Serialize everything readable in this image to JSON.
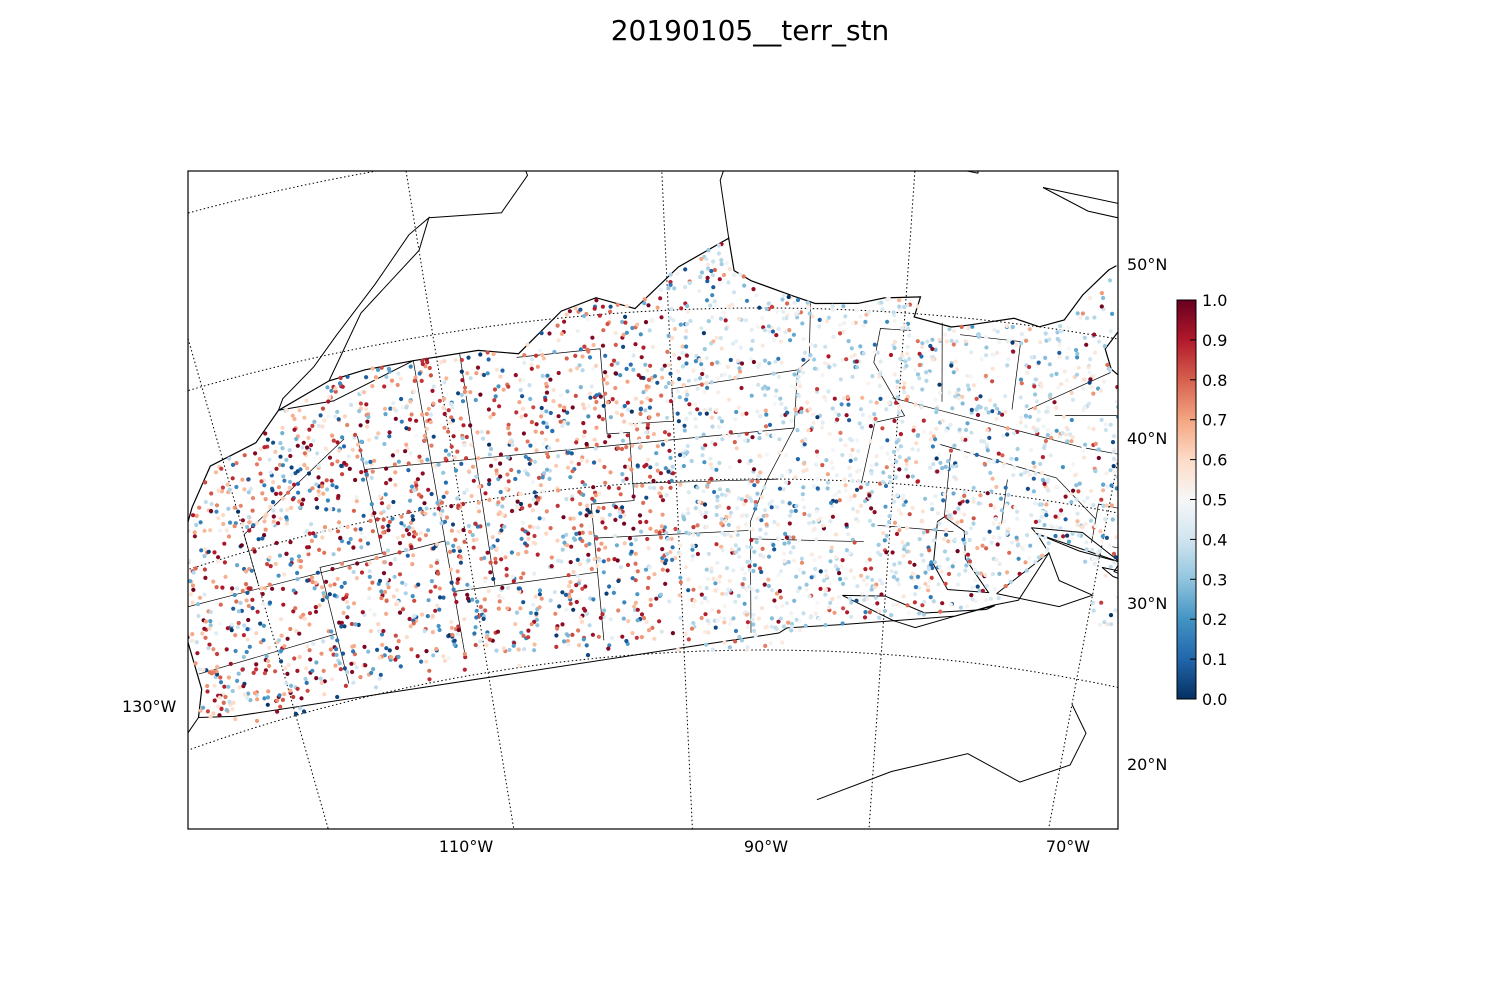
{
  "title": "20190105__terr_stn",
  "map": {
    "projection": "lambert-conformal",
    "region": "Contiguous United States, southern Canada, northern Mexico, Caribbean",
    "lon_labels": [
      {
        "text": "130°W",
        "lon": -130
      },
      {
        "text": "110°W",
        "lon": -110
      },
      {
        "text": "90°W",
        "lon": -90
      },
      {
        "text": "70°W",
        "lon": -70
      }
    ],
    "lat_labels": [
      {
        "text": "50°N",
        "lat": 50
      },
      {
        "text": "40°N",
        "lat": 40
      },
      {
        "text": "30°N",
        "lat": 30
      },
      {
        "text": "20°N",
        "lat": 20
      }
    ],
    "graticule_style": "dotted",
    "point_type": "station scatter",
    "point_count_approx": 9000
  },
  "colorbar": {
    "colormap": "RdBu_r",
    "min": 0.0,
    "max": 1.0,
    "ticks": [
      "0.0",
      "0.1",
      "0.2",
      "0.3",
      "0.4",
      "0.5",
      "0.6",
      "0.7",
      "0.8",
      "0.9",
      "1.0"
    ],
    "colors": [
      "#053061",
      "#2166ac",
      "#4393c3",
      "#92c5de",
      "#d1e5f0",
      "#f7f7f7",
      "#fddbc7",
      "#f4a582",
      "#d6604d",
      "#b2182b",
      "#67001f"
    ]
  }
}
